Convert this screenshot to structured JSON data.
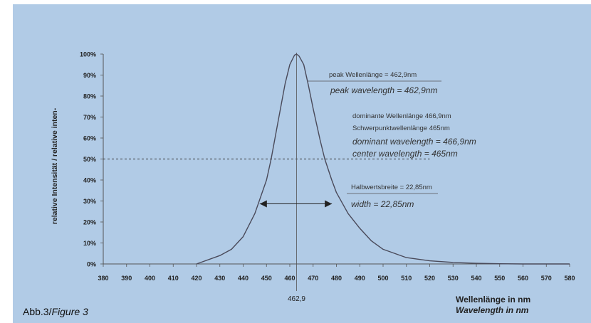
{
  "chart_data": {
    "type": "line",
    "ylabel": "relative Intensität / relative inten-",
    "xlabel_de": "Wellenlänge in nm",
    "xlabel_en": "Wavelength in nm",
    "xlim": [
      380,
      580
    ],
    "ylim": [
      0,
      100
    ],
    "x_ticks": [
      380,
      390,
      400,
      410,
      420,
      430,
      440,
      450,
      460,
      470,
      480,
      490,
      500,
      510,
      520,
      530,
      540,
      550,
      560,
      570,
      580
    ],
    "y_ticks": [
      "0%",
      "10%",
      "20%",
      "30%",
      "40%",
      "50%",
      "60%",
      "70%",
      "80%",
      "90%",
      "100%"
    ],
    "y_tick_values": [
      0,
      10,
      20,
      30,
      40,
      50,
      60,
      70,
      80,
      90,
      100
    ],
    "peak_label": "462,9",
    "peak_x": 462.9,
    "half_level": 50,
    "fwhm_left": 452,
    "fwhm_right": 475,
    "annotations": {
      "peak_de": "peak Wellenlänge = 462,9nm",
      "peak_en": "peak wavelength = 462,9nm",
      "dominant_de": "dominante Wellenlänge 466,9nm",
      "center_de": "Schwerpunktwellenlänge 465nm",
      "dominant_en": "dominant wavelength = 466,9nm",
      "center_en": "center wavelength = 465nm",
      "width_de": "Halbwertsbreite = 22,85nm",
      "width_en": "width = 22,85nm"
    },
    "series": [
      {
        "x": [
          420,
          430,
          435,
          440,
          445,
          450,
          452,
          455,
          458,
          460,
          462,
          462.9,
          464,
          466,
          468,
          470,
          473,
          475,
          478,
          480,
          485,
          490,
          495,
          500,
          510,
          520,
          530,
          540,
          550,
          560,
          570,
          580
        ],
        "values": [
          0,
          4,
          7,
          13,
          24,
          40,
          50,
          68,
          86,
          95,
          99.5,
          100,
          99,
          95,
          85,
          74,
          59,
          50,
          40,
          34,
          24,
          17,
          11,
          7,
          3,
          1.5,
          0.7,
          0.3,
          0.1,
          0,
          0,
          0
        ]
      }
    ]
  },
  "figure": {
    "caption_prefix": "Abb.3/",
    "caption_italic": "Figure 3"
  },
  "colors": {
    "background": "#b1cbe6",
    "curve": "#4a4a5a",
    "axis": "#555555",
    "text": "#222222",
    "annotation_en": "#333333"
  }
}
